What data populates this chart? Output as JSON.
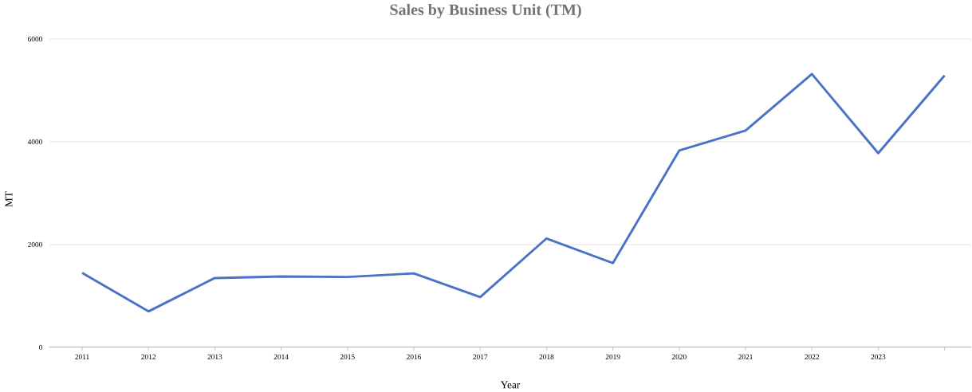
{
  "chart_data": {
    "type": "line",
    "title": "Sales by Business Unit (TM)",
    "xlabel": "Year",
    "ylabel": "MT",
    "categories": [
      "2011",
      "2012",
      "2013",
      "2014",
      "2015",
      "2016",
      "2017",
      "2018",
      "2019",
      "2020",
      "2021",
      "2022",
      "2023",
      null
    ],
    "series": [
      {
        "color": "#4a72c6",
        "values": [
          1450,
          700,
          1350,
          1380,
          1370,
          1440,
          980,
          2120,
          1640,
          3830,
          4220,
          5320,
          3780,
          5290
        ]
      }
    ],
    "ylim": [
      0,
      6000
    ],
    "yticks": [
      0,
      2000,
      4000,
      6000
    ],
    "grid": "y",
    "marker": "none"
  }
}
